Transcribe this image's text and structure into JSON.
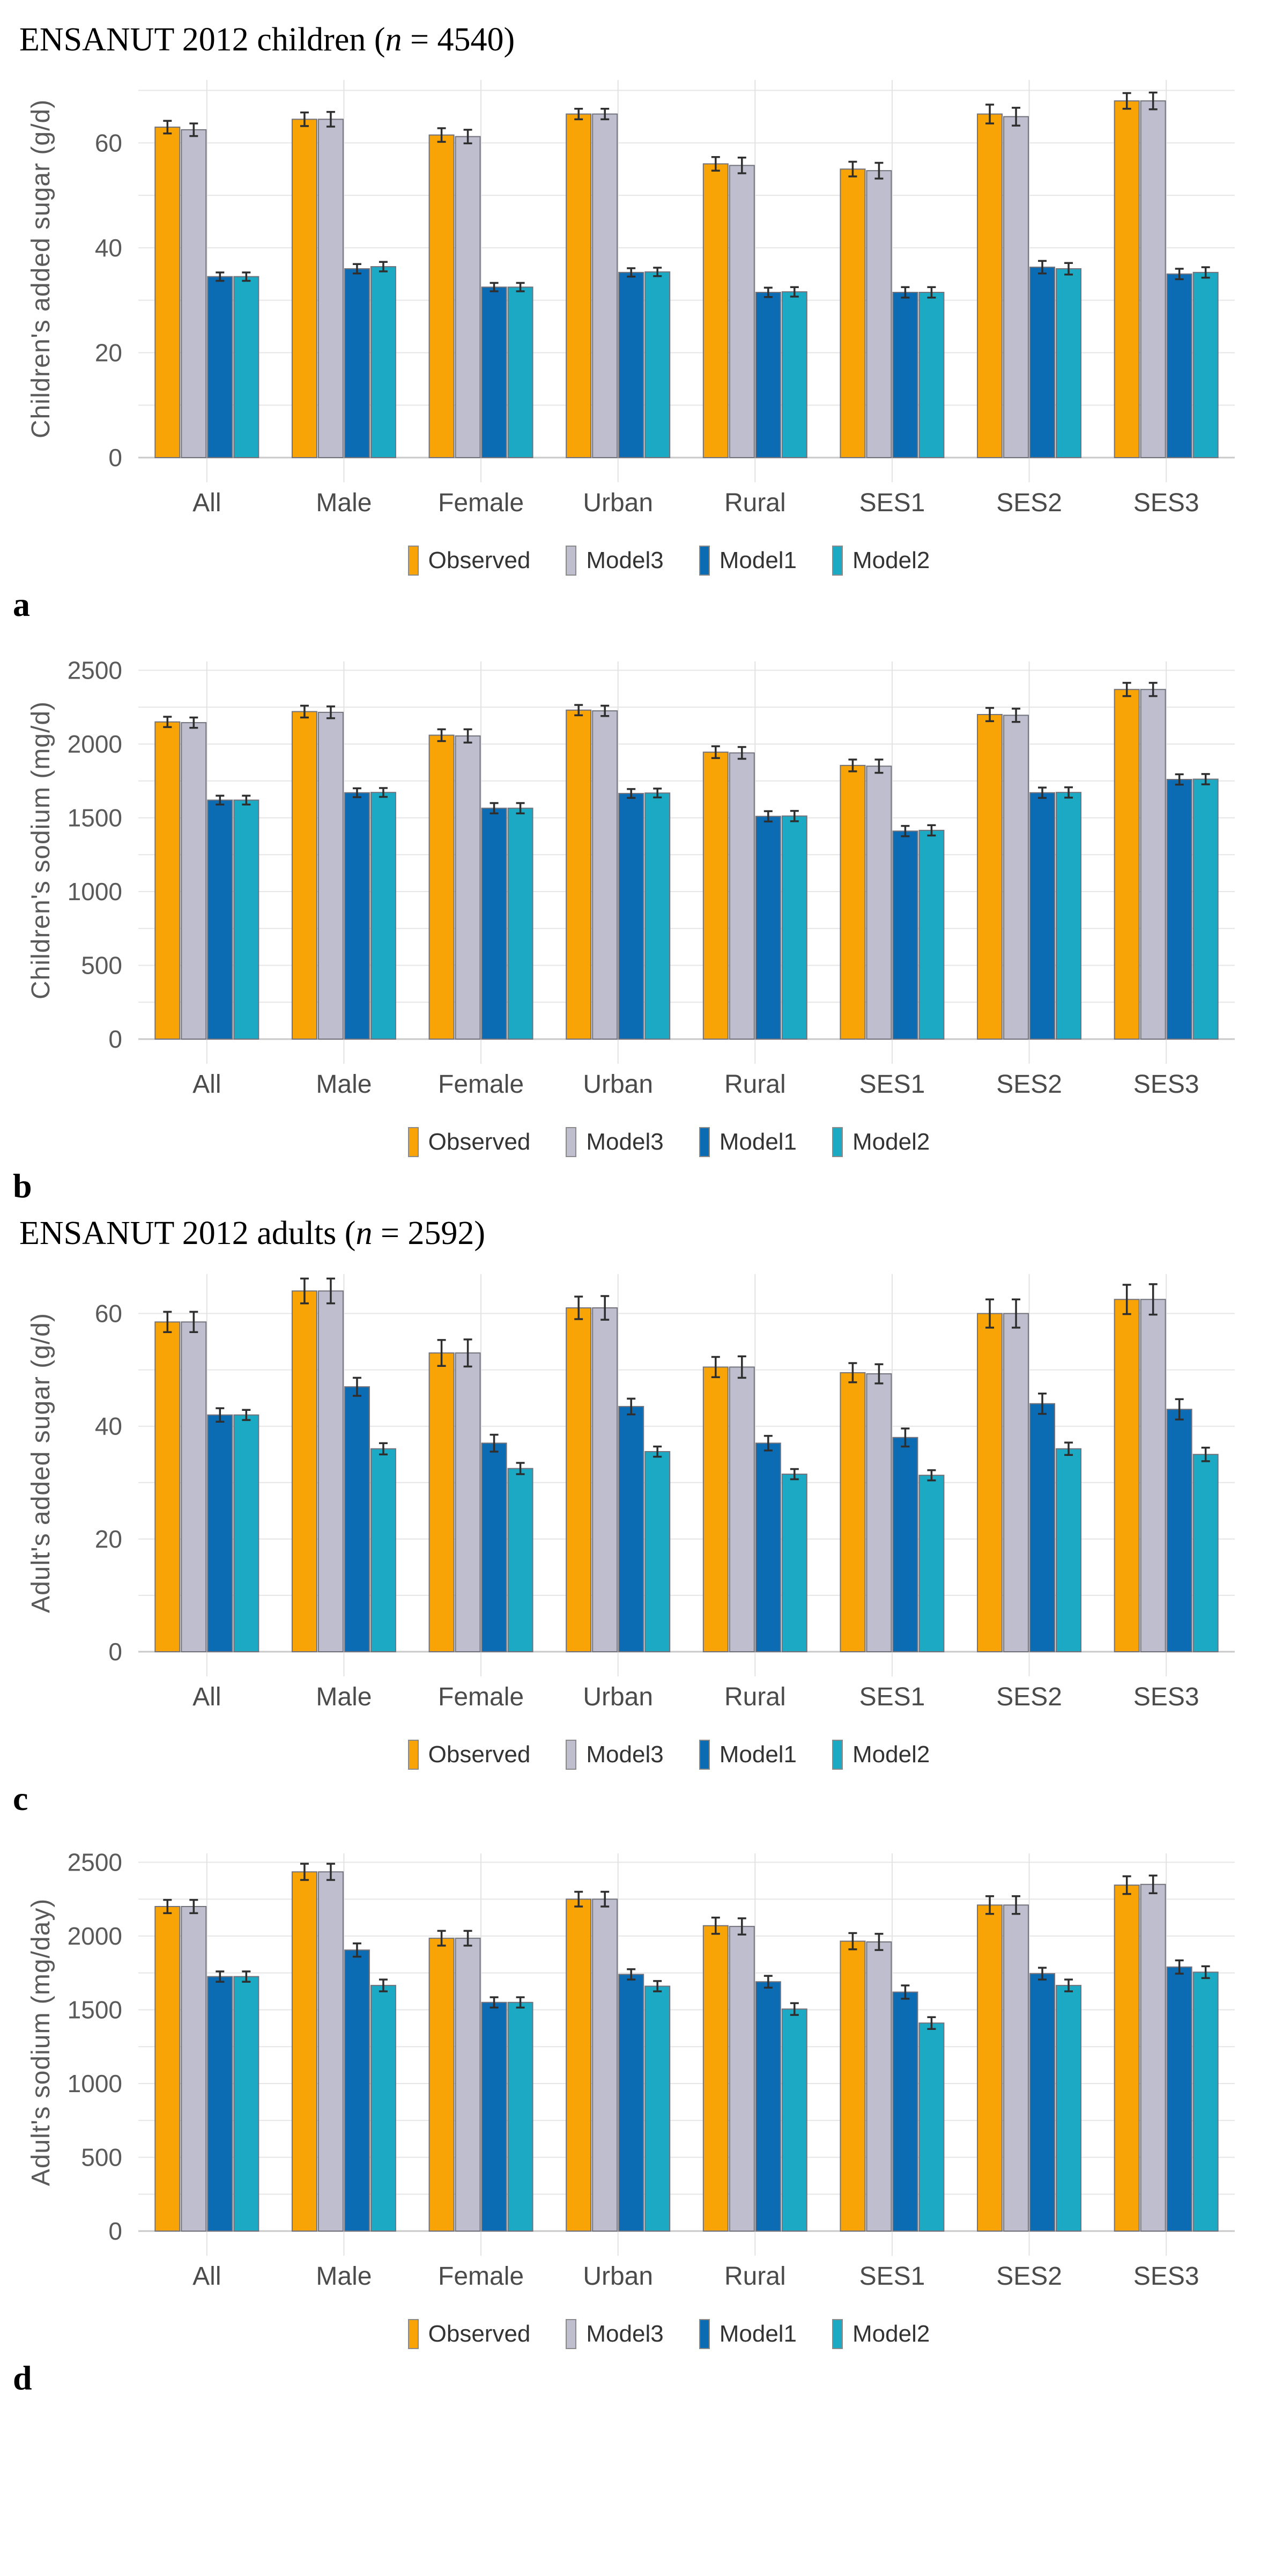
{
  "titles": {
    "children": {
      "prefix": "ENSANUT 2012 children (",
      "n": "n",
      "suffix": " = 4540)"
    },
    "adults": {
      "prefix": "ENSANUT 2012 adults (",
      "n": "n",
      "suffix": " = 2592)"
    }
  },
  "panel_labels": {
    "a": "a",
    "b": "b",
    "c": "c",
    "d": "d"
  },
  "colors": {
    "observed": "#F8A406",
    "model3": "#BFBECE",
    "model1": "#0C6CB3",
    "model2": "#1BA9C4",
    "bar_outline": "#72727C",
    "error_bar": "#2E2E2E",
    "gridline": "#E6E6E6",
    "axis_text": "#5A5A5A"
  },
  "chart_data": [
    {
      "type": "bar",
      "panel": "a",
      "ylabel": "Children's added sugar (g/d)",
      "ymax": 72,
      "grid_step": 10,
      "yticks": [
        0,
        20,
        40,
        60
      ],
      "categories": [
        "All",
        "Male",
        "Female",
        "Urban",
        "Rural",
        "SES1",
        "SES2",
        "SES3"
      ],
      "legend_position": "bottom",
      "series": [
        {
          "name": "Observed",
          "color": "#F8A406",
          "values": [
            63,
            64.5,
            61.5,
            65.5,
            56,
            55,
            65.5,
            68
          ],
          "errors": [
            1.2,
            1.3,
            1.3,
            1.0,
            1.3,
            1.4,
            1.8,
            1.5
          ]
        },
        {
          "name": "Model3",
          "color": "#BFBECE",
          "values": [
            62.5,
            64.5,
            61.2,
            65.5,
            55.7,
            54.7,
            65,
            68
          ],
          "errors": [
            1.2,
            1.4,
            1.3,
            1.0,
            1.5,
            1.5,
            1.7,
            1.6
          ]
        },
        {
          "name": "Model1",
          "color": "#0C6CB3",
          "values": [
            34.5,
            36,
            32.5,
            35.3,
            31.5,
            31.5,
            36.3,
            35
          ],
          "errors": [
            0.8,
            0.9,
            0.8,
            0.8,
            0.9,
            1.0,
            1.2,
            1.0
          ]
        },
        {
          "name": "Model2",
          "color": "#1BA9C4",
          "values": [
            34.5,
            36.4,
            32.5,
            35.4,
            31.6,
            31.5,
            36,
            35.3
          ],
          "errors": [
            0.8,
            0.9,
            0.8,
            0.8,
            0.9,
            1.0,
            1.1,
            1.0
          ]
        }
      ]
    },
    {
      "type": "bar",
      "panel": "b",
      "ylabel": "Children's sodium (mg/d)",
      "ymax": 2560,
      "grid_step": 250,
      "yticks": [
        0,
        500,
        1000,
        1500,
        2000,
        2500
      ],
      "categories": [
        "All",
        "Male",
        "Female",
        "Urban",
        "Rural",
        "SES1",
        "SES2",
        "SES3"
      ],
      "legend_position": "bottom",
      "series": [
        {
          "name": "Observed",
          "color": "#F8A406",
          "values": [
            2150,
            2220,
            2060,
            2230,
            1945,
            1855,
            2200,
            2370
          ],
          "errors": [
            35,
            40,
            40,
            35,
            40,
            40,
            45,
            45
          ]
        },
        {
          "name": "Model3",
          "color": "#BFBECE",
          "values": [
            2145,
            2215,
            2055,
            2225,
            1940,
            1850,
            2195,
            2370
          ],
          "errors": [
            35,
            40,
            45,
            35,
            40,
            45,
            45,
            45
          ]
        },
        {
          "name": "Model1",
          "color": "#0C6CB3",
          "values": [
            1620,
            1670,
            1565,
            1665,
            1510,
            1410,
            1670,
            1760
          ],
          "errors": [
            30,
            30,
            35,
            30,
            35,
            35,
            35,
            35
          ]
        },
        {
          "name": "Model2",
          "color": "#1BA9C4",
          "values": [
            1620,
            1672,
            1565,
            1668,
            1512,
            1415,
            1672,
            1762
          ],
          "errors": [
            30,
            30,
            35,
            30,
            35,
            35,
            35,
            35
          ]
        }
      ]
    },
    {
      "type": "bar",
      "panel": "c",
      "ylabel": "Adult's added sugar (g/d)",
      "ymax": 67,
      "grid_step": 10,
      "yticks": [
        0,
        20,
        40,
        60
      ],
      "categories": [
        "All",
        "Male",
        "Female",
        "Urban",
        "Rural",
        "SES1",
        "SES2",
        "SES3"
      ],
      "legend_position": "bottom",
      "series": [
        {
          "name": "Observed",
          "color": "#F8A406",
          "values": [
            58.5,
            64,
            53,
            61,
            50.5,
            49.5,
            60,
            62.5
          ],
          "errors": [
            1.8,
            2.2,
            2.3,
            2.0,
            1.8,
            1.7,
            2.5,
            2.6
          ]
        },
        {
          "name": "Model3",
          "color": "#BFBECE",
          "values": [
            58.5,
            64,
            53,
            61,
            50.5,
            49.3,
            60,
            62.5
          ],
          "errors": [
            1.8,
            2.2,
            2.4,
            2.1,
            1.9,
            1.7,
            2.5,
            2.7
          ]
        },
        {
          "name": "Model1",
          "color": "#0C6CB3",
          "values": [
            42,
            47,
            37,
            43.5,
            37,
            38,
            44,
            43
          ],
          "errors": [
            1.2,
            1.6,
            1.5,
            1.4,
            1.3,
            1.6,
            1.8,
            1.8
          ]
        },
        {
          "name": "Model2",
          "color": "#1BA9C4",
          "values": [
            42,
            36,
            32.5,
            35.5,
            31.5,
            31.3,
            36,
            35
          ],
          "errors": [
            0.9,
            1.0,
            1.0,
            0.9,
            0.9,
            0.9,
            1.1,
            1.2
          ]
        }
      ]
    },
    {
      "type": "bar",
      "panel": "d",
      "ylabel": "Adult's sodium (mg/day)",
      "ymax": 2560,
      "grid_step": 250,
      "yticks": [
        0,
        500,
        1000,
        1500,
        2000,
        2500
      ],
      "categories": [
        "All",
        "Male",
        "Female",
        "Urban",
        "Rural",
        "SES1",
        "SES2",
        "SES3"
      ],
      "legend_position": "bottom",
      "series": [
        {
          "name": "Observed",
          "color": "#F8A406",
          "values": [
            2200,
            2435,
            1985,
            2250,
            2070,
            1965,
            2210,
            2345
          ],
          "errors": [
            45,
            55,
            50,
            50,
            55,
            55,
            60,
            60
          ]
        },
        {
          "name": "Model3",
          "color": "#BFBECE",
          "values": [
            2200,
            2435,
            1985,
            2250,
            2065,
            1960,
            2210,
            2350
          ],
          "errors": [
            45,
            55,
            50,
            50,
            55,
            55,
            60,
            60
          ]
        },
        {
          "name": "Model1",
          "color": "#0C6CB3",
          "values": [
            1725,
            1905,
            1550,
            1740,
            1690,
            1620,
            1745,
            1790
          ],
          "errors": [
            35,
            45,
            35,
            35,
            40,
            45,
            40,
            45
          ]
        },
        {
          "name": "Model2",
          "color": "#1BA9C4",
          "values": [
            1725,
            1665,
            1550,
            1660,
            1505,
            1410,
            1665,
            1755
          ],
          "errors": [
            35,
            40,
            35,
            35,
            40,
            40,
            40,
            40
          ]
        }
      ]
    }
  ]
}
